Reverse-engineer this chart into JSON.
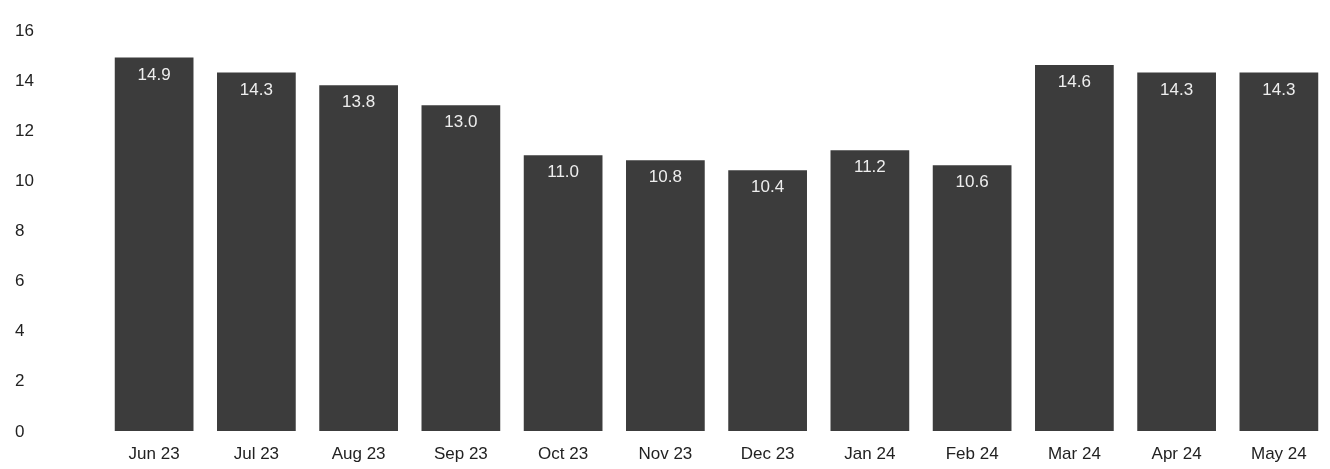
{
  "chart_data": {
    "type": "bar",
    "categories": [
      "Jun 23",
      "Jul 23",
      "Aug 23",
      "Sep 23",
      "Oct 23",
      "Nov 23",
      "Dec 23",
      "Jan 24",
      "Feb 24",
      "Mar 24",
      "Apr 24",
      "May 24"
    ],
    "values": [
      14.9,
      14.3,
      13.8,
      13.0,
      11.0,
      10.8,
      10.4,
      11.2,
      10.6,
      14.6,
      14.3,
      14.3
    ],
    "value_labels": [
      "14.9",
      "14.3",
      "13.8",
      "13.0",
      "11.0",
      "10.8",
      "10.4",
      "11.2",
      "10.6",
      "14.6",
      "14.3",
      "14.3"
    ],
    "color": "#3c3c3c",
    "ylim": [
      0,
      16
    ],
    "yticks": [
      0,
      2,
      4,
      6,
      8,
      10,
      12,
      14,
      16
    ],
    "grid": false
  }
}
